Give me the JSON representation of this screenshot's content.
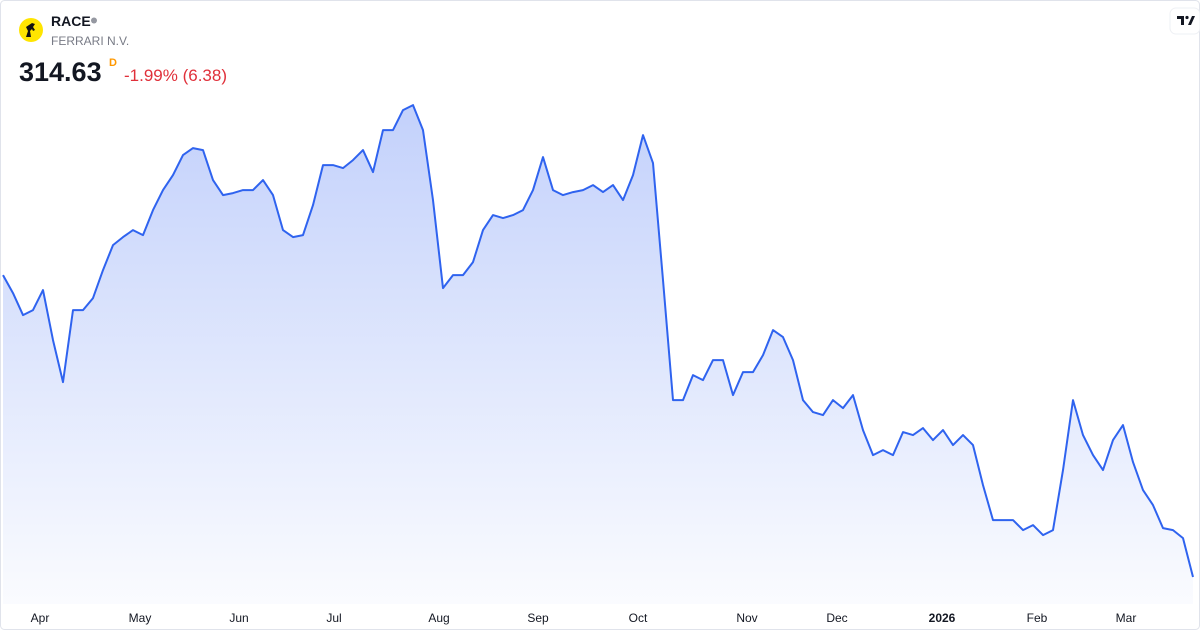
{
  "header": {
    "symbol": "RACE",
    "name": "FERRARI N.V.",
    "price": 314.63,
    "interval": "D",
    "change": "-1.99% (6.38)"
  },
  "chart_data": {
    "type": "area",
    "color": "#2f63ef",
    "values": [
      435.4,
      428.2,
      419.4,
      421.4,
      429.4,
      409.4,
      392.6,
      421.4,
      421.4,
      426.2,
      437.4,
      447.4,
      450.6,
      453.4,
      451.4,
      461.4,
      469.4,
      475.4,
      483.4,
      486.2,
      485.4,
      473.4,
      467.4,
      468.2,
      469.4,
      469.4,
      473.4,
      467.4,
      453.4,
      450.6,
      451.4,
      463.4,
      479.4,
      479.4,
      478.2,
      481.4,
      485.4,
      476.6,
      493.4,
      493.4,
      501.4,
      503.4,
      493.4,
      465.4,
      430.2,
      435.4,
      435.4,
      440.6,
      453.4,
      459.4,
      458.2,
      459.4,
      461.4,
      469.4,
      482.6,
      469.4,
      467.4,
      468.6,
      469.4,
      471.4,
      468.6,
      471.4,
      465.4,
      475.4,
      491.4,
      480.2,
      433.4,
      385.4,
      385.4,
      395.4,
      393.4,
      401.4,
      401.4,
      387.4,
      396.6,
      396.6,
      403.4,
      413.4,
      410.6,
      401.4,
      385.4,
      380.6,
      379.4,
      385.4,
      382.2,
      387.4,
      373.4,
      363.4,
      365.4,
      363.4,
      372.6,
      371.4,
      374.2,
      369.4,
      373.4,
      367.4,
      371.4,
      367.4,
      351.4,
      337.4,
      337.4,
      337.4,
      333.4,
      335.4,
      331.4,
      333.4,
      357.4,
      385.4,
      371.4,
      363.4,
      357.4,
      369.4,
      375.4,
      360.6,
      349.4,
      343.4,
      334.2,
      333.4,
      330.2,
      314.63
    ],
    "xlim": [
      0,
      119
    ],
    "xticks": [
      {
        "value": 3.7,
        "label": "Apr"
      },
      {
        "value": 13.7,
        "label": "May"
      },
      {
        "value": 23.6,
        "label": "Jun"
      },
      {
        "value": 33.1,
        "label": "Jul"
      },
      {
        "value": 43.6,
        "label": "Aug"
      },
      {
        "value": 53.5,
        "label": "Sep"
      },
      {
        "value": 63.5,
        "label": "Oct"
      },
      {
        "value": 74.4,
        "label": "Nov"
      },
      {
        "value": 83.4,
        "label": "Dec"
      },
      {
        "value": 93.9,
        "label": "2026",
        "bold": true
      },
      {
        "value": 103.4,
        "label": "Feb"
      },
      {
        "value": 112.3,
        "label": "Mar"
      }
    ],
    "ylim": [
      300,
      520
    ]
  }
}
